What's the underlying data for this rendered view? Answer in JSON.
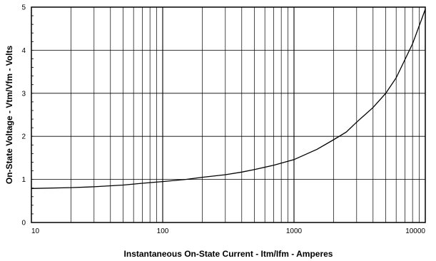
{
  "chart_data": {
    "type": "line",
    "title": "",
    "xlabel": "Instantaneous On-State Current  -  Itm/Ifm  -  Amperes",
    "ylabel": "On-State Voltage  -  Vtm/Vfm  -  Volts",
    "x_scale": "log",
    "xlim": [
      10,
      10000
    ],
    "ylim": [
      0,
      5
    ],
    "x_tick_labels": [
      "10",
      "100",
      "1000",
      "10000"
    ],
    "y_tick_labels": [
      "0",
      "1",
      "2",
      "3",
      "4",
      "5"
    ],
    "grid": true,
    "legend": "none",
    "series": [
      {
        "x": [
          10,
          20,
          30,
          50,
          70,
          100,
          150,
          200,
          300,
          400,
          500,
          700,
          1000,
          1500,
          2000,
          2500,
          3000,
          4000,
          5000,
          6000,
          8000,
          10000
        ],
        "y": [
          0.79,
          0.81,
          0.83,
          0.87,
          0.91,
          0.95,
          1.0,
          1.05,
          1.11,
          1.17,
          1.23,
          1.33,
          1.46,
          1.7,
          1.92,
          2.1,
          2.33,
          2.67,
          3.0,
          3.36,
          4.15,
          4.95
        ]
      }
    ],
    "colors": {
      "line": "#000000",
      "grid": "#000000",
      "background": "#ffffff"
    }
  }
}
